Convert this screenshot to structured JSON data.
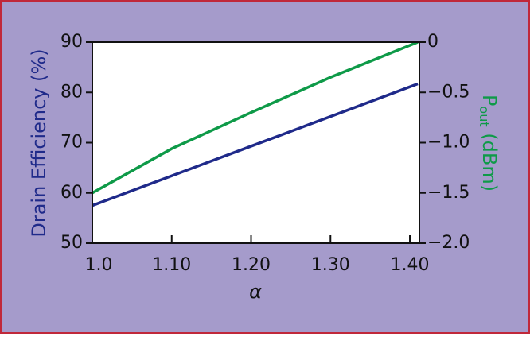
{
  "chart_data": {
    "type": "line",
    "xlabel": "α",
    "ylabel": "Drain Efficiency (%)",
    "y2label": {
      "main": "P",
      "sub": "out",
      "rest": " (dBm)"
    },
    "x": [
      1.0,
      1.1,
      1.2,
      1.3,
      1.41
    ],
    "series": [
      {
        "name": "Drain Efficiency",
        "color": "#1f2a8a",
        "values": [
          57.5,
          63.4,
          69.3,
          75.2,
          81.7
        ]
      },
      {
        "name": "Pout",
        "color": "#0e9a48",
        "axis": "y2",
        "values": [
          -1.5,
          -1.06,
          -0.7,
          -0.35,
          0
        ]
      }
    ],
    "xlim": [
      1.0,
      1.412
    ],
    "xticks": [
      {
        "value": 1.0,
        "label": "1.0"
      },
      {
        "value": 1.1,
        "label": "1.10"
      },
      {
        "value": 1.2,
        "label": "1.20"
      },
      {
        "value": 1.3,
        "label": "1.30"
      },
      {
        "value": 1.4,
        "label": "1.40"
      }
    ],
    "ylim": [
      50,
      90
    ],
    "yticks": [
      50,
      60,
      70,
      80,
      90
    ],
    "y2lim": [
      -2.0,
      0
    ],
    "y2ticks": [
      {
        "value": -2.0,
        "label": "−2.0"
      },
      {
        "value": -1.5,
        "label": "−1.5"
      },
      {
        "value": -1.0,
        "label": "−1.0"
      },
      {
        "value": -0.5,
        "label": "−0.5"
      },
      0
    ],
    "grid": false
  }
}
